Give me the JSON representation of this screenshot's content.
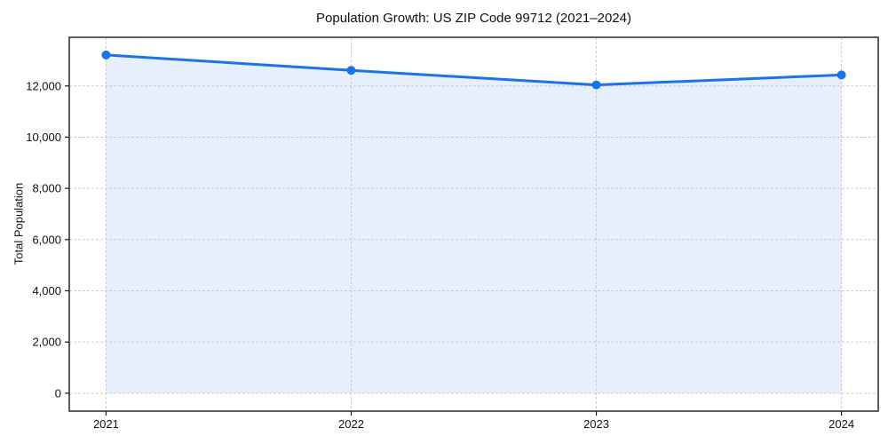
{
  "chart_data": {
    "type": "line",
    "title": "Population Growth: US ZIP Code 99712 (2021–2024)",
    "xlabel": "",
    "ylabel": "Total Population",
    "x": [
      2021,
      2022,
      2023,
      2024
    ],
    "series": [
      {
        "name": "Total Population",
        "values": [
          13210,
          12610,
          12040,
          12430
        ]
      }
    ],
    "xtick_labels": [
      "2021",
      "2022",
      "2023",
      "2024"
    ],
    "ytick_values": [
      0,
      2000,
      4000,
      6000,
      8000,
      10000,
      12000
    ],
    "ytick_labels": [
      "0",
      "2,000",
      "4,000",
      "6,000",
      "8,000",
      "10,000",
      "12,000"
    ],
    "xlim": [
      2020.85,
      2024.15
    ],
    "ylim": [
      -700,
      13900
    ],
    "grid": "both, dashed",
    "legend": "none",
    "area_fill_to_zero": true,
    "marker": "circle",
    "colors": {
      "line": "#1a73e8",
      "marker": "#1a73e8",
      "fill": "#e7effc",
      "grid": "#cccccc",
      "spine": "#1a1a1a",
      "text": "#111111",
      "background": "#ffffff"
    }
  }
}
